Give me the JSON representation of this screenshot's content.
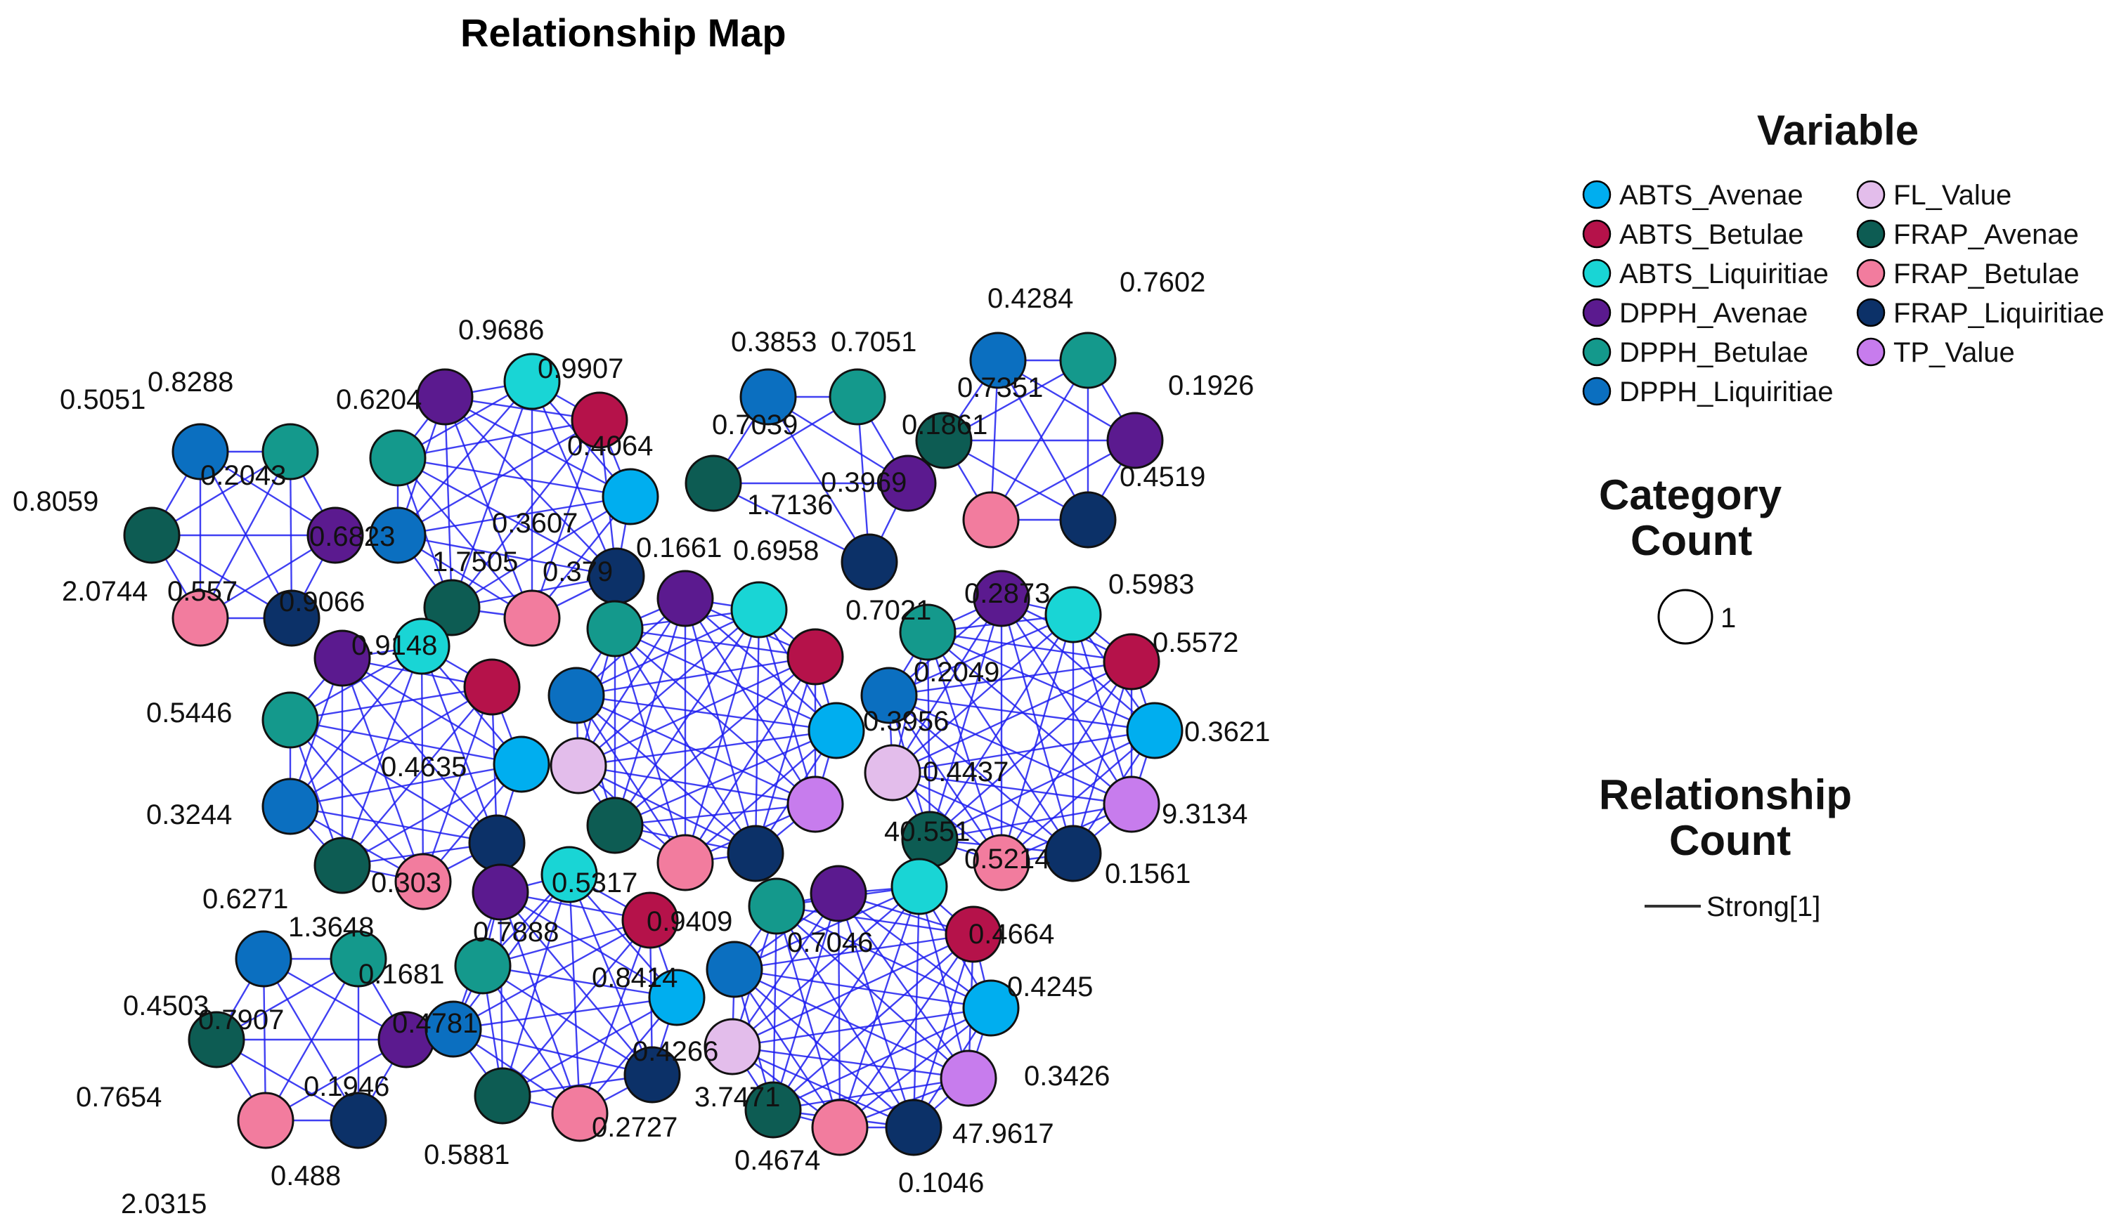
{
  "title": "Relationship Map",
  "legend": {
    "variable_heading": "Variable",
    "category_heading_line1": "Category",
    "category_heading_line2": "Count",
    "category_value": "1",
    "relationship_heading_line1": "Relationship",
    "relationship_heading_line2": "Count",
    "relationship_value": "Strong[1]",
    "variables": [
      {
        "name": "ABTS_Avenae",
        "color": "#00AEEF"
      },
      {
        "name": "ABTS_Betulae",
        "color": "#B5124A"
      },
      {
        "name": "ABTS_Liquiritiae",
        "color": "#19D5D5"
      },
      {
        "name": "DPPH_Avenae",
        "color": "#5B1A8F"
      },
      {
        "name": "DPPH_Betulae",
        "color": "#14998C"
      },
      {
        "name": "DPPH_Liquiritiae",
        "color": "#0B6FC0"
      },
      {
        "name": "FL_Value",
        "color": "#E3BDEB"
      },
      {
        "name": "FRAP_Avenae",
        "color": "#0D5C53"
      },
      {
        "name": "FRAP_Betulae",
        "color": "#F27C9E"
      },
      {
        "name": "FRAP_Liquiritiae",
        "color": "#0C3168"
      },
      {
        "name": "TP_Value",
        "color": "#C77CED"
      }
    ]
  },
  "edge_color": "#1F1FF0",
  "node_labels": [
    "0.5051",
    "0.8288",
    "0.2043",
    "0.8059",
    "2.0744",
    "0.557",
    "0.9066",
    "0.6823",
    "0.6204",
    "0.9686",
    "0.9907",
    "0.4064",
    "0.3607",
    "1.7505",
    "0.379",
    "0.9148",
    "0.3853",
    "0.7051",
    "0.7039",
    "1.7136",
    "0.6958",
    "0.3969",
    "0.1861",
    "0.4284",
    "0.7602",
    "0.7351",
    "0.1926",
    "0.4519",
    "0.1661",
    "0.7021",
    "0.2873",
    "0.5983",
    "0.5572",
    "0.2049",
    "0.3956",
    "0.3621",
    "0.4437",
    "9.3134",
    "40.551",
    "0.5214",
    "0.1561",
    "0.5446",
    "0.4635",
    "0.3244",
    "0.303",
    "0.5317",
    "0.6271",
    "1.3648",
    "0.1681",
    "0.4503",
    "0.7907",
    "0.4781",
    "0.1946",
    "0.7654",
    "0.488",
    "2.0315",
    "0.7888",
    "0.9409",
    "0.8414",
    "0.4266",
    "0.5881",
    "0.2727",
    "0.7046",
    "0.4664",
    "0.4245",
    "0.3426",
    "3.7471",
    "47.9617",
    "0.4674",
    "0.1046"
  ]
}
